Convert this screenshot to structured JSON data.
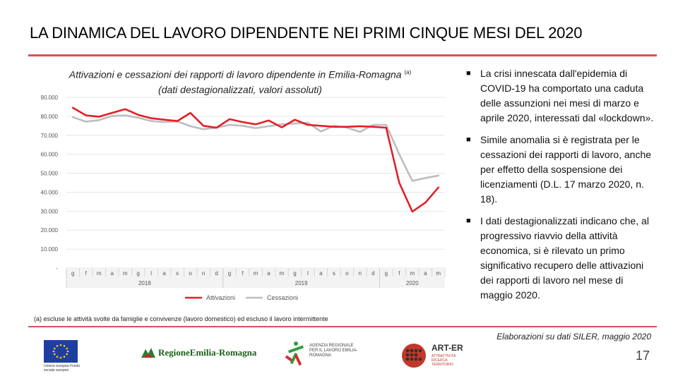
{
  "slide": {
    "title": "LA DINAMICA DEL LAVORO DIPENDENTE NEI PRIMI CINQUE MESI DEL 2020",
    "chart_title_line1": "Attivazioni e cessazioni dei rapporti di lavoro dipendente in Emilia-Romagna",
    "chart_title_sup": "(a)",
    "chart_title_line2": "(dati destagionalizzati, valori assoluti)",
    "footnote": "(a) escluse le attività svolte da famiglie e convivenze (lavoro domestico) ed escluso il lavoro intermittente",
    "bullet_mark": "■",
    "bullets": [
      "La crisi innescata dall'epidemia di COVID-19 ha comportato una caduta delle assunzioni nei mesi di marzo e aprile 2020, interessati dal «lockdown».",
      "Simile anomalia si è registrata per le cessazioni dei rapporti di lavoro, anche per effetto della sospensione dei licenziamenti (D.L. 17 marzo 2020, n. 18).",
      "I dati destagionalizzati indicano che, al progressivo riavvio della attività economica, si è rilevato un primo significativo recupero delle attivazioni dei rapporti di lavoro nel mese di maggio 2020."
    ],
    "source": "Elaborazioni su dati SILER, maggio 2020",
    "page_number": "17",
    "logos": {
      "eu_caption": "Unione europea Fondo sociale europeo",
      "region": "RegioneEmilia-Romagna",
      "agency": "AGENZIA REGIONALE PER IL LAVORO EMILIA-ROMAGNA",
      "arter": "ART-ER",
      "arter_sub": "ATTRATTIVITÀ RICERCA TERRITORIO"
    },
    "colors": {
      "accent": "#d9534f",
      "activations": "#e41e26",
      "terminations": "#bdbdbd"
    }
  },
  "chart_data": {
    "type": "line",
    "title": "Attivazioni e cessazioni dei rapporti di lavoro dipendente in Emilia-Romagna (dati destagionalizzati, valori assoluti)",
    "categories": [
      "g",
      "f",
      "m",
      "a",
      "m",
      "g",
      "l",
      "a",
      "s",
      "o",
      "n",
      "d",
      "g",
      "f",
      "m",
      "a",
      "m",
      "g",
      "l",
      "a",
      "s",
      "o",
      "n",
      "d",
      "g",
      "f",
      "m",
      "a",
      "m"
    ],
    "year_labels": [
      {
        "label": "2018",
        "start": 0,
        "end": 11
      },
      {
        "label": "2019",
        "start": 12,
        "end": 23
      },
      {
        "label": "2020",
        "start": 24,
        "end": 28
      }
    ],
    "ylim": [
      0,
      90000
    ],
    "yticks": [
      0,
      10000,
      20000,
      30000,
      40000,
      50000,
      60000,
      70000,
      80000,
      90000
    ],
    "ytick_labels": [
      "-",
      "10.000",
      "20.000",
      "30.000",
      "40.000",
      "50.000",
      "60.000",
      "70.000",
      "80.000",
      "90.000"
    ],
    "series": [
      {
        "name": "Attivazioni",
        "color": "#e41e26",
        "values": [
          84500,
          80500,
          79800,
          81800,
          83800,
          80800,
          79000,
          78200,
          77500,
          81800,
          75000,
          74000,
          78500,
          77000,
          75800,
          77800,
          74200,
          78200,
          75500,
          75000,
          74500,
          74500,
          74800,
          74500,
          74000,
          45000,
          29800,
          34500,
          42500
        ]
      },
      {
        "name": "Cessazioni",
        "color": "#bdbdbd",
        "values": [
          79500,
          77200,
          78000,
          80200,
          80500,
          79300,
          77500,
          77000,
          77300,
          74800,
          73200,
          74000,
          75500,
          75000,
          73800,
          74800,
          75800,
          76200,
          76600,
          72000,
          75000,
          74000,
          71800,
          75500,
          75500,
          60000,
          46000,
          47500,
          48800
        ]
      }
    ],
    "legend_position": "bottom"
  }
}
